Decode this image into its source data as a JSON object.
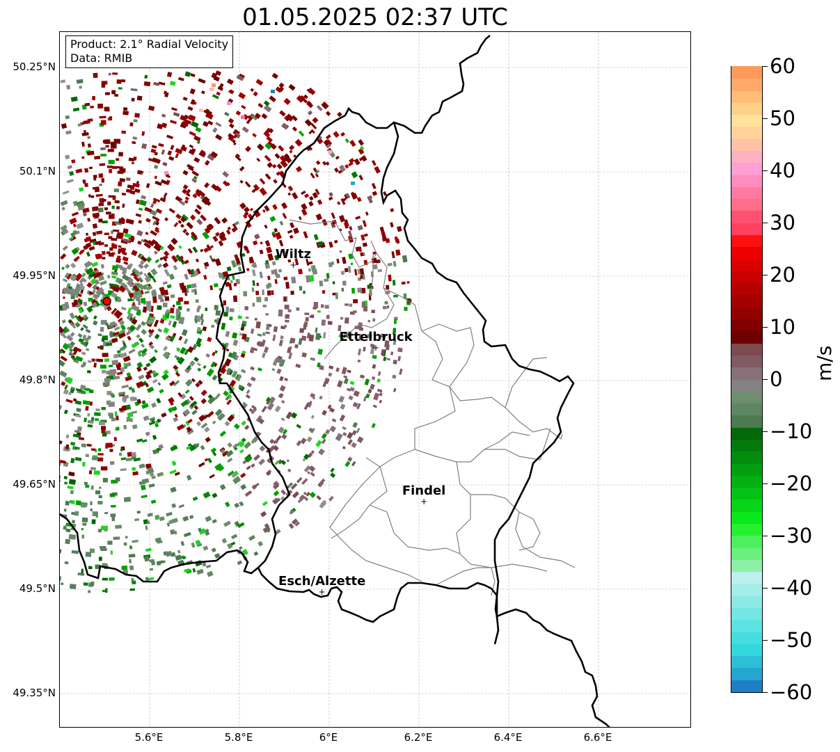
{
  "title": "01.05.2025 02:37 UTC",
  "info_box": {
    "product": "Product: 2.1° Radial Velocity",
    "source": "Data: RMIB"
  },
  "latitude_labels": [
    "50.25°N",
    "50.1°N",
    "49.95°N",
    "49.8°N",
    "49.65°N",
    "49.5°N",
    "49.35°N"
  ],
  "longitude_labels": [
    "5.6°E",
    "5.8°E",
    "6°E",
    "6.2°E",
    "6.4°E",
    "6.6°E"
  ],
  "cities": [
    {
      "name": "Wiltz",
      "lon": 5.92,
      "lat": 49.966
    },
    {
      "name": "Ettelbruck",
      "lon": 6.104,
      "lat": 49.847
    },
    {
      "name": "Findel",
      "lon": 6.211,
      "lat": 49.626
    },
    {
      "name": "Esch/Alzette",
      "lon": 5.984,
      "lat": 49.496
    }
  ],
  "radar_site": {
    "lon": 5.505,
    "lat": 49.914,
    "color": "#ff0000"
  },
  "colorbar": {
    "unit": "m/s",
    "min": -60,
    "max": 60,
    "ticks": [
      "60",
      "50",
      "40",
      "30",
      "20",
      "10",
      "0",
      "−10",
      "−20",
      "−30",
      "−40",
      "−50",
      "−60"
    ],
    "colors": [
      "#1f7fc4",
      "#25a6d1",
      "#2cbfd6",
      "#33d8de",
      "#44dede",
      "#5be3e1",
      "#74e6e3",
      "#8de9e6",
      "#a5ede9",
      "#bdf0ee",
      "#8ef0a8",
      "#6bf07e",
      "#4cf05c",
      "#26f02f",
      "#0ae81a",
      "#06d418",
      "#04c214",
      "#03b012",
      "#029e10",
      "#028c0e",
      "#027a0c",
      "#02680a",
      "#4e7a52",
      "#5e8662",
      "#6e8e6e",
      "#848282",
      "#86707a",
      "#7e5a62",
      "#7d4a50",
      "#6e0000",
      "#800000",
      "#920000",
      "#a40000",
      "#b60000",
      "#c80000",
      "#da0000",
      "#ee0000",
      "#ff1010",
      "#ff4060",
      "#ff5070",
      "#ff6d88",
      "#ff7aa0",
      "#ff8cbf",
      "#ff9fd4",
      "#ffb0c0",
      "#ffc2a8",
      "#ffd39a",
      "#ffe39a",
      "#ffd088",
      "#ffbd78",
      "#ffaa68",
      "#ff9a58"
    ]
  },
  "colors": {
    "outbound_strong": "#800000",
    "neutral": "#7a7a7a",
    "inbound_strong": "#007a00",
    "border": "#000000",
    "canton": "#7f7f7f"
  }
}
